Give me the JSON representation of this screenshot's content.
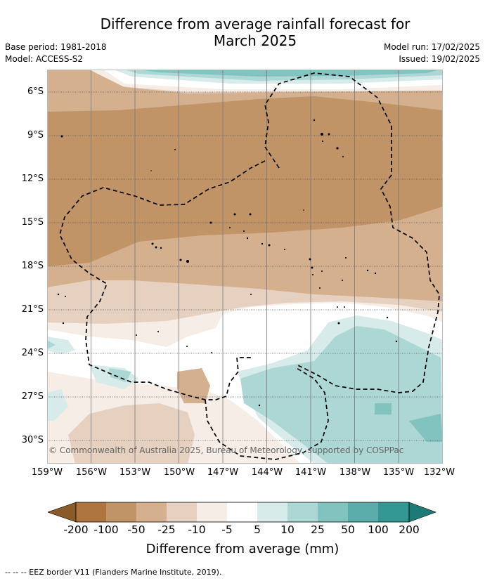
{
  "title_line1": "Difference from average rainfall forecast for",
  "title_line2": "March 2025",
  "base_period": "Base period: 1981-2018",
  "model": "Model: ACCESS-S2",
  "model_run": "Model run: 17/02/2025",
  "issued": "Issued: 19/02/2025",
  "copyright": "© Commonwealth of Australia 2025, Bureau of Meteorology, supported by COSPPac",
  "footnote": "--  --  -- EEZ border V11 (Flanders Marine Institute, 2019).",
  "lat_labels": [
    "6°S",
    "9°S",
    "12°S",
    "15°S",
    "18°S",
    "21°S",
    "24°S",
    "27°S",
    "30°S"
  ],
  "lon_labels": [
    "159°W",
    "156°W",
    "153°W",
    "150°W",
    "147°W",
    "144°W",
    "141°W",
    "138°W",
    "135°W",
    "132°W"
  ],
  "colorbar": {
    "title": "Difference from average (mm)",
    "labels": [
      "-200",
      "-100",
      "-50",
      "-25",
      "-10",
      "-5",
      "5",
      "10",
      "25",
      "50",
      "100",
      "200"
    ],
    "colors": [
      "#8a5a2b",
      "#ad7641",
      "#c19467",
      "#d4b08f",
      "#e6d1c0",
      "#f5ede6",
      "#ffffff",
      "#d6ebea",
      "#acd7d5",
      "#82c3c0",
      "#5aadaa",
      "#339894",
      "#1d7a76"
    ]
  }
}
